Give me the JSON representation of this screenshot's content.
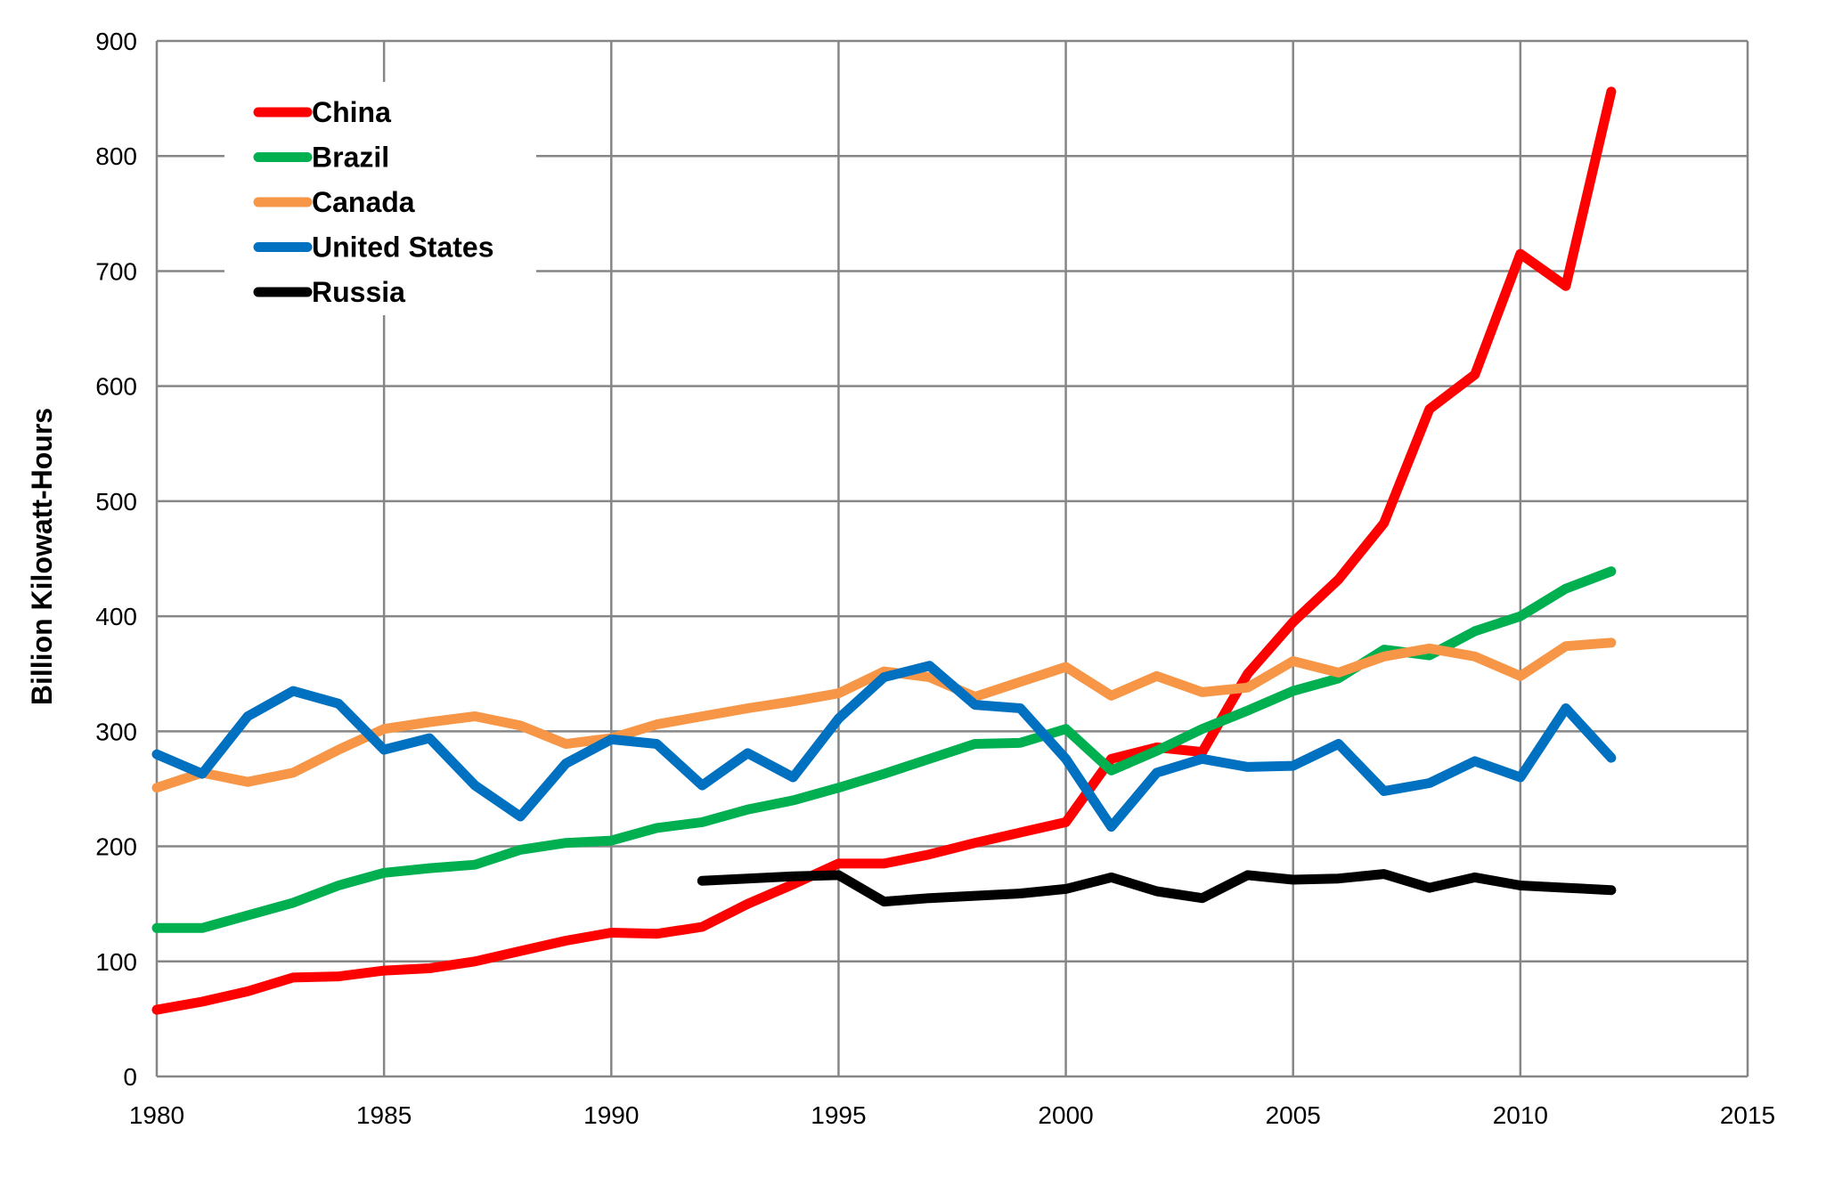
{
  "chart_data": {
    "type": "line",
    "title": "",
    "xlabel": "",
    "ylabel": "Billion Kilowatt-Hours",
    "xlim": [
      1980,
      2015
    ],
    "ylim": [
      0,
      900
    ],
    "xticks": [
      1980,
      1985,
      1990,
      1995,
      2000,
      2005,
      2010,
      2015
    ],
    "yticks": [
      0,
      100,
      200,
      300,
      400,
      500,
      600,
      700,
      800,
      900
    ],
    "grid": true,
    "legend_position": "top-left",
    "series": [
      {
        "name": "China",
        "color": "#ff0000",
        "x": [
          1980,
          1981,
          1982,
          1983,
          1984,
          1985,
          1986,
          1987,
          1988,
          1989,
          1990,
          1991,
          1992,
          1993,
          1994,
          1995,
          1996,
          1997,
          1998,
          1999,
          2000,
          2001,
          2002,
          2003,
          2004,
          2005,
          2006,
          2007,
          2008,
          2009,
          2010,
          2011,
          2012
        ],
        "y": [
          58,
          65,
          74,
          86,
          87,
          92,
          94,
          100,
          109,
          118,
          125,
          124,
          130,
          150,
          167,
          185,
          185,
          193,
          203,
          212,
          221,
          276,
          286,
          282,
          350,
          395,
          432,
          481,
          580,
          610,
          715,
          687,
          856
        ]
      },
      {
        "name": "Brazil",
        "color": "#00b050",
        "x": [
          1980,
          1981,
          1982,
          1983,
          1984,
          1985,
          1986,
          1987,
          1988,
          1989,
          1990,
          1991,
          1992,
          1993,
          1994,
          1995,
          1996,
          1997,
          1998,
          1999,
          2000,
          2001,
          2002,
          2003,
          2004,
          2005,
          2006,
          2007,
          2008,
          2009,
          2010,
          2011,
          2012
        ],
        "y": [
          129,
          129,
          140,
          151,
          166,
          177,
          181,
          184,
          197,
          203,
          205,
          216,
          221,
          232,
          240,
          251,
          263,
          276,
          289,
          290,
          302,
          266,
          283,
          302,
          318,
          335,
          346,
          371,
          366,
          387,
          400,
          424,
          439
        ]
      },
      {
        "name": "Canada",
        "color": "#f79646",
        "x": [
          1980,
          1981,
          1982,
          1983,
          1984,
          1985,
          1986,
          1987,
          1988,
          1989,
          1990,
          1991,
          1992,
          1993,
          1994,
          1995,
          1996,
          1997,
          1998,
          1999,
          2000,
          2001,
          2002,
          2003,
          2004,
          2005,
          2006,
          2007,
          2008,
          2009,
          2010,
          2011,
          2012
        ],
        "y": [
          251,
          264,
          256,
          264,
          284,
          302,
          308,
          313,
          305,
          289,
          294,
          306,
          313,
          320,
          326,
          333,
          352,
          347,
          330,
          343,
          356,
          331,
          348,
          334,
          338,
          361,
          351,
          365,
          372,
          365,
          348,
          374,
          377
        ]
      },
      {
        "name": "United States",
        "color": "#0070c0",
        "x": [
          1980,
          1981,
          1982,
          1983,
          1984,
          1985,
          1986,
          1987,
          1988,
          1989,
          1990,
          1991,
          1992,
          1993,
          1994,
          1995,
          1996,
          1997,
          1998,
          1999,
          2000,
          2001,
          2002,
          2003,
          2004,
          2005,
          2006,
          2007,
          2008,
          2009,
          2010,
          2011,
          2012
        ],
        "y": [
          280,
          263,
          313,
          335,
          324,
          284,
          294,
          253,
          226,
          272,
          293,
          289,
          253,
          281,
          260,
          311,
          347,
          357,
          323,
          320,
          276,
          217,
          264,
          276,
          269,
          270,
          289,
          248,
          255,
          274,
          260,
          320,
          277
        ]
      },
      {
        "name": "Russia",
        "color": "#000000",
        "x": [
          1992,
          1993,
          1994,
          1995,
          1996,
          1997,
          1998,
          1999,
          2000,
          2001,
          2002,
          2003,
          2004,
          2005,
          2006,
          2007,
          2008,
          2009,
          2010,
          2011,
          2012
        ],
        "y": [
          170,
          172,
          174,
          175,
          152,
          155,
          157,
          159,
          163,
          173,
          161,
          155,
          175,
          171,
          172,
          176,
          164,
          173,
          166,
          164,
          162
        ]
      }
    ]
  }
}
